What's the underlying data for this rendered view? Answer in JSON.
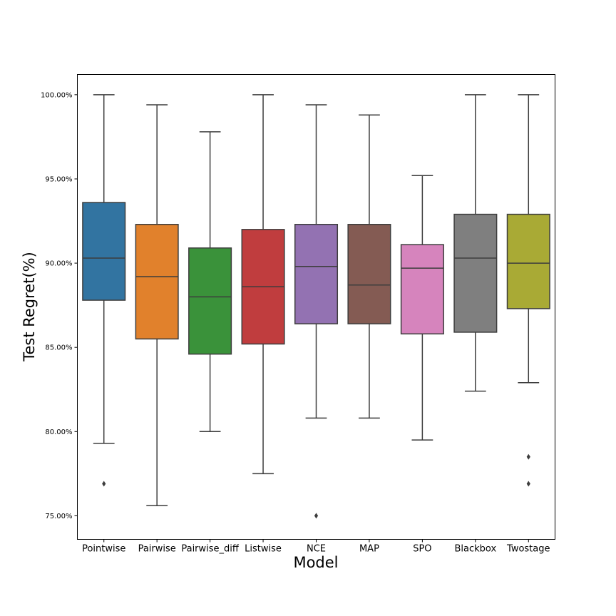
{
  "chart_data": {
    "type": "box",
    "xlabel": "Model",
    "ylabel": "Test Regret(%)",
    "ylim": [
      73.6,
      101.2
    ],
    "yticks": [
      75,
      80,
      85,
      90,
      95,
      100
    ],
    "ytick_labels": [
      "75.00%",
      "80.00%",
      "85.00%",
      "90.00%",
      "95.00%",
      "100.00%"
    ],
    "grid": false,
    "categories": [
      "Pointwise",
      "Pairwise",
      "Pairwise_diff",
      "Listwise",
      "NCE",
      "MAP",
      "SPO",
      "Blackbox",
      "Twostage"
    ],
    "series": [
      {
        "category": "Pointwise",
        "color": "#3274a1",
        "whisker_low": 79.3,
        "q1": 87.8,
        "median": 90.3,
        "q3": 93.6,
        "whisker_high": 100.0,
        "outliers": [
          76.9
        ]
      },
      {
        "category": "Pairwise",
        "color": "#e1812c",
        "whisker_low": 75.6,
        "q1": 85.5,
        "median": 89.2,
        "q3": 92.3,
        "whisker_high": 99.4,
        "outliers": []
      },
      {
        "category": "Pairwise_diff",
        "color": "#3a923a",
        "whisker_low": 80.0,
        "q1": 84.6,
        "median": 88.0,
        "q3": 90.9,
        "whisker_high": 97.8,
        "outliers": []
      },
      {
        "category": "Listwise",
        "color": "#c03d3e",
        "whisker_low": 77.5,
        "q1": 85.2,
        "median": 88.6,
        "q3": 92.0,
        "whisker_high": 100.0,
        "outliers": []
      },
      {
        "category": "NCE",
        "color": "#9372b2",
        "whisker_low": 80.8,
        "q1": 86.4,
        "median": 89.8,
        "q3": 92.3,
        "whisker_high": 99.4,
        "outliers": [
          75.0
        ]
      },
      {
        "category": "MAP",
        "color": "#845b53",
        "whisker_low": 80.8,
        "q1": 86.4,
        "median": 88.7,
        "q3": 92.3,
        "whisker_high": 98.8,
        "outliers": []
      },
      {
        "category": "SPO",
        "color": "#d684bd",
        "whisker_low": 79.5,
        "q1": 85.8,
        "median": 89.7,
        "q3": 91.1,
        "whisker_high": 95.2,
        "outliers": []
      },
      {
        "category": "Blackbox",
        "color": "#7f7f7f",
        "whisker_low": 82.4,
        "q1": 85.9,
        "median": 90.3,
        "q3": 92.9,
        "whisker_high": 100.0,
        "outliers": []
      },
      {
        "category": "Twostage",
        "color": "#a9aa35",
        "whisker_low": 82.9,
        "q1": 87.3,
        "median": 90.0,
        "q3": 92.9,
        "whisker_high": 100.0,
        "outliers": [
          78.5,
          76.9
        ]
      }
    ]
  }
}
